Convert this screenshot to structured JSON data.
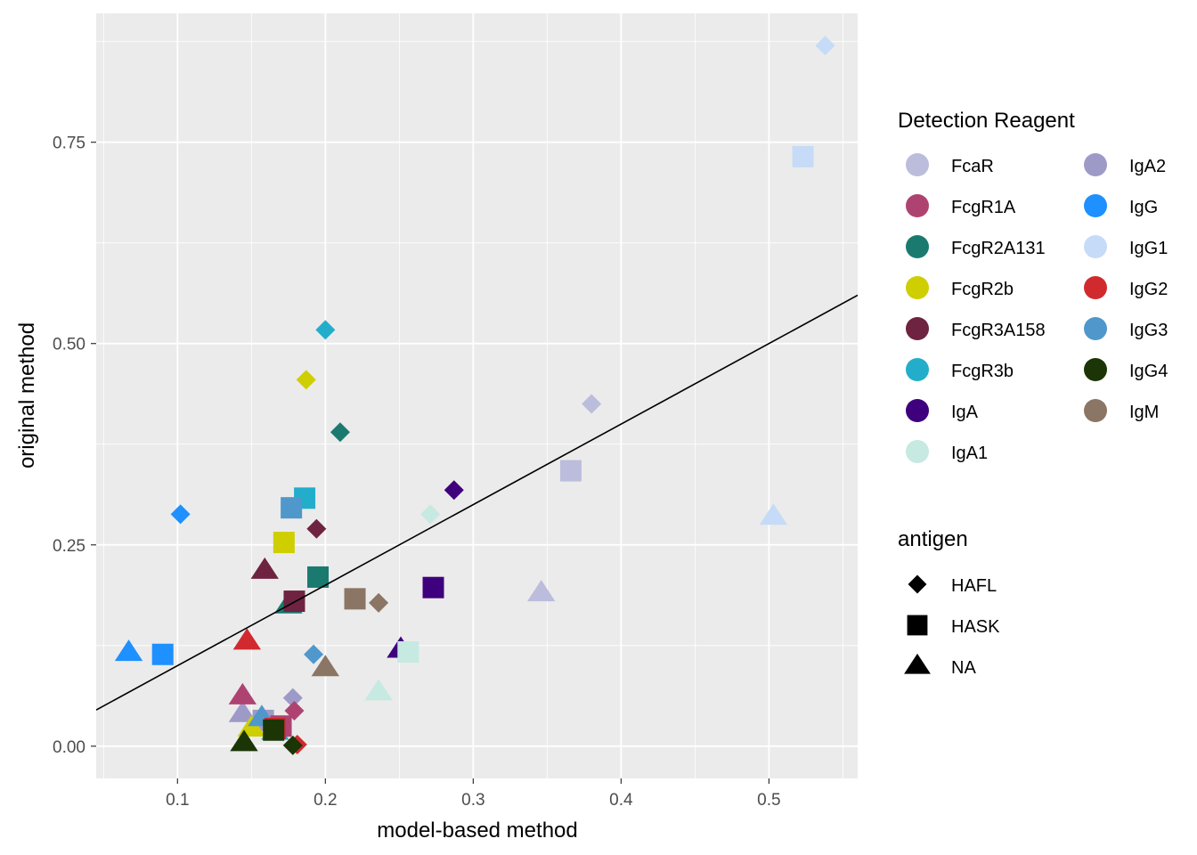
{
  "chart_data": {
    "type": "scatter",
    "xlabel": "model-based method",
    "ylabel": "original method",
    "xlim": [
      0.045,
      0.56
    ],
    "ylim": [
      -0.04,
      0.91
    ],
    "x_ticks": [
      0.1,
      0.2,
      0.3,
      0.4,
      0.5
    ],
    "x_tick_labels": [
      "0.1",
      "0.2",
      "0.3",
      "0.4",
      "0.5"
    ],
    "y_ticks": [
      0.0,
      0.25,
      0.5,
      0.75
    ],
    "y_tick_labels": [
      "0.00",
      "0.25",
      "0.50",
      "0.75"
    ],
    "grid": true,
    "reference_line": {
      "intercept": 0.0,
      "slope": 1.0
    },
    "legends": {
      "color": {
        "title": "Detection Reagent",
        "placement": "right",
        "entries": [
          {
            "label": "FcaR",
            "color": "#BCBDDC"
          },
          {
            "label": "FcgR1A",
            "color": "#AE4371"
          },
          {
            "label": "FcgR2A131",
            "color": "#1B7A70"
          },
          {
            "label": "FcgR2b",
            "color": "#CECE00"
          },
          {
            "label": "FcgR3A158",
            "color": "#6E2340"
          },
          {
            "label": "FcgR3b",
            "color": "#22AECB"
          },
          {
            "label": "IgA",
            "color": "#3F007D"
          },
          {
            "label": "IgA1",
            "color": "#C6E9E2"
          },
          {
            "label": "IgA2",
            "color": "#9E9AC8"
          },
          {
            "label": "IgG",
            "color": "#1E90FF"
          },
          {
            "label": "IgG1",
            "color": "#C6DBF7"
          },
          {
            "label": "IgG2",
            "color": "#D02A2F"
          },
          {
            "label": "IgG3",
            "color": "#5097CB"
          },
          {
            "label": "IgG4",
            "color": "#1C3506"
          },
          {
            "label": "IgM",
            "color": "#8B7565"
          }
        ]
      },
      "shape": {
        "title": "antigen",
        "placement": "right",
        "entries": [
          {
            "label": "HAFL",
            "shape": "diamond"
          },
          {
            "label": "HASK",
            "shape": "square"
          },
          {
            "label": "NA",
            "shape": "triangle"
          }
        ]
      }
    },
    "points": [
      {
        "x": 0.538,
        "y": 0.87,
        "reagent": "IgG1",
        "antigen": "HAFL"
      },
      {
        "x": 0.523,
        "y": 0.732,
        "reagent": "IgG1",
        "antigen": "HASK"
      },
      {
        "x": 0.503,
        "y": 0.285,
        "reagent": "IgG1",
        "antigen": "NA"
      },
      {
        "x": 0.38,
        "y": 0.425,
        "reagent": "FcaR",
        "antigen": "HAFL"
      },
      {
        "x": 0.366,
        "y": 0.342,
        "reagent": "FcaR",
        "antigen": "HASK"
      },
      {
        "x": 0.346,
        "y": 0.19,
        "reagent": "FcaR",
        "antigen": "NA"
      },
      {
        "x": 0.287,
        "y": 0.318,
        "reagent": "IgA",
        "antigen": "HAFL"
      },
      {
        "x": 0.273,
        "y": 0.197,
        "reagent": "IgA",
        "antigen": "HASK"
      },
      {
        "x": 0.251,
        "y": 0.12,
        "reagent": "IgA",
        "antigen": "NA"
      },
      {
        "x": 0.271,
        "y": 0.288,
        "reagent": "IgA1",
        "antigen": "HAFL"
      },
      {
        "x": 0.256,
        "y": 0.117,
        "reagent": "IgA1",
        "antigen": "HASK"
      },
      {
        "x": 0.236,
        "y": 0.067,
        "reagent": "IgA1",
        "antigen": "NA"
      },
      {
        "x": 0.178,
        "y": 0.06,
        "reagent": "IgA2",
        "antigen": "HAFL"
      },
      {
        "x": 0.158,
        "y": 0.032,
        "reagent": "IgA2",
        "antigen": "HASK"
      },
      {
        "x": 0.144,
        "y": 0.04,
        "reagent": "IgA2",
        "antigen": "NA"
      },
      {
        "x": 0.2,
        "y": 0.517,
        "reagent": "FcgR3b",
        "antigen": "HAFL"
      },
      {
        "x": 0.186,
        "y": 0.308,
        "reagent": "FcgR3b",
        "antigen": "HASK"
      },
      {
        "x": 0.166,
        "y": 0.018,
        "reagent": "FcgR3b",
        "antigen": "NA"
      },
      {
        "x": 0.187,
        "y": 0.455,
        "reagent": "FcgR2b",
        "antigen": "HAFL"
      },
      {
        "x": 0.172,
        "y": 0.253,
        "reagent": "FcgR2b",
        "antigen": "HASK"
      },
      {
        "x": 0.15,
        "y": 0.022,
        "reagent": "FcgR2b",
        "antigen": "NA"
      },
      {
        "x": 0.21,
        "y": 0.39,
        "reagent": "FcgR2A131",
        "antigen": "HAFL"
      },
      {
        "x": 0.195,
        "y": 0.21,
        "reagent": "FcgR2A131",
        "antigen": "HASK"
      },
      {
        "x": 0.175,
        "y": 0.175,
        "reagent": "FcgR2A131",
        "antigen": "NA"
      },
      {
        "x": 0.194,
        "y": 0.27,
        "reagent": "FcgR3A158",
        "antigen": "HAFL"
      },
      {
        "x": 0.179,
        "y": 0.18,
        "reagent": "FcgR3A158",
        "antigen": "HASK"
      },
      {
        "x": 0.159,
        "y": 0.218,
        "reagent": "FcgR3A158",
        "antigen": "NA"
      },
      {
        "x": 0.102,
        "y": 0.288,
        "reagent": "IgG",
        "antigen": "HAFL"
      },
      {
        "x": 0.09,
        "y": 0.114,
        "reagent": "IgG",
        "antigen": "HASK"
      },
      {
        "x": 0.067,
        "y": 0.116,
        "reagent": "IgG",
        "antigen": "NA"
      },
      {
        "x": 0.192,
        "y": 0.114,
        "reagent": "IgG3",
        "antigen": "HAFL"
      },
      {
        "x": 0.177,
        "y": 0.296,
        "reagent": "IgG3",
        "antigen": "HASK"
      },
      {
        "x": 0.157,
        "y": 0.035,
        "reagent": "IgG3",
        "antigen": "NA"
      },
      {
        "x": 0.236,
        "y": 0.178,
        "reagent": "IgM",
        "antigen": "HAFL"
      },
      {
        "x": 0.22,
        "y": 0.183,
        "reagent": "IgM",
        "antigen": "HASK"
      },
      {
        "x": 0.2,
        "y": 0.097,
        "reagent": "IgM",
        "antigen": "NA"
      },
      {
        "x": 0.179,
        "y": 0.044,
        "reagent": "FcgR1A",
        "antigen": "HAFL"
      },
      {
        "x": 0.17,
        "y": 0.025,
        "reagent": "FcgR1A",
        "antigen": "HASK"
      },
      {
        "x": 0.144,
        "y": 0.062,
        "reagent": "FcgR1A",
        "antigen": "NA"
      },
      {
        "x": 0.181,
        "y": 0.002,
        "reagent": "IgG2",
        "antigen": "HAFL"
      },
      {
        "x": 0.166,
        "y": 0.022,
        "reagent": "IgG2",
        "antigen": "HASK"
      },
      {
        "x": 0.147,
        "y": 0.13,
        "reagent": "IgG2",
        "antigen": "NA"
      },
      {
        "x": 0.178,
        "y": 0.001,
        "reagent": "IgG4",
        "antigen": "HAFL"
      },
      {
        "x": 0.165,
        "y": 0.02,
        "reagent": "IgG4",
        "antigen": "HASK"
      },
      {
        "x": 0.145,
        "y": 0.004,
        "reagent": "IgG4",
        "antigen": "NA"
      }
    ]
  }
}
